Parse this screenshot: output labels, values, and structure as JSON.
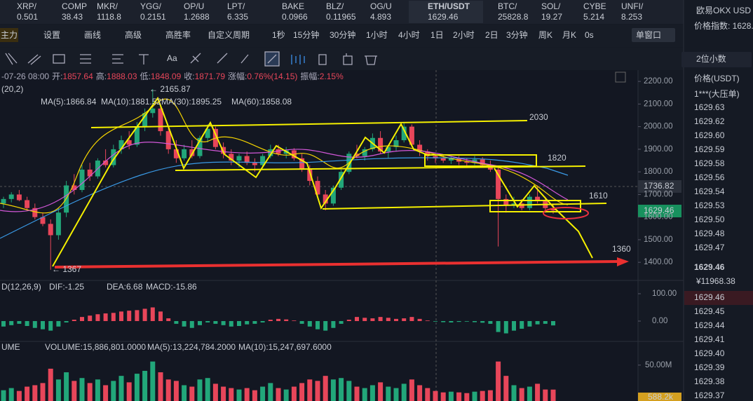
{
  "tickers": [
    {
      "name": "XRP/",
      "price": "0.501"
    },
    {
      "name": "COMP",
      "price": "38.43"
    },
    {
      "name": "MKR/",
      "price": "1118.8"
    },
    {
      "name": "YGG/",
      "price": "0.2151"
    },
    {
      "name": "OP/U",
      "price": "1.2688"
    },
    {
      "name": "LPT/",
      "price": "6.335"
    },
    {
      "name": "BAKE",
      "price": "0.0966"
    },
    {
      "name": "BLZ/",
      "price": "0.11965"
    },
    {
      "name": "OG/U",
      "price": "4.893"
    },
    {
      "name": "ETH/USDT",
      "price": "1629.46"
    },
    {
      "name": "BTC/",
      "price": "25828.8"
    },
    {
      "name": "SOL/",
      "price": "19.27"
    },
    {
      "name": "CYBE",
      "price": "5.214"
    },
    {
      "name": "UNFI/",
      "price": "8.253"
    }
  ],
  "toolbar": {
    "left": [
      "主力",
      "设置",
      "画线",
      "高级",
      "高胜率",
      "自定义周期"
    ],
    "periods": [
      "1秒",
      "15分钟",
      "30分钟",
      "1小时",
      "4小时",
      "1日",
      "2小时",
      "2日",
      "3分钟",
      "周K",
      "月K",
      "0s"
    ],
    "window": "单窗口"
  },
  "chart": {
    "info": [
      {
        "k": "-07-26 08:00",
        "v": ""
      },
      {
        "k": "开:",
        "v": "1857.64"
      },
      {
        "k": "高:",
        "v": "1888.03"
      },
      {
        "k": "低:",
        "v": "1848.09"
      },
      {
        "k": "收:",
        "v": "1871.79"
      },
      {
        "k": "涨幅:",
        "v": "0.76%(14.15)"
      },
      {
        "k": "振幅:",
        "v": "2.15%"
      }
    ],
    "boll": "(20,2)",
    "ma": [
      {
        "label": "MA(5):1866.84",
        "color": "#e8e8e8"
      },
      {
        "label": "MA(10):1881.52",
        "color": "#f5d400"
      },
      {
        "label": "MA(30):1895.25",
        "color": "#d257d8"
      },
      {
        "label": "MA(60):1858.08",
        "color": "#3a9be8"
      }
    ],
    "ylim": [
      1320,
      2250
    ],
    "yticks": [
      {
        "value": 2200,
        "label": "2200.00"
      },
      {
        "value": 2100,
        "label": "2100.00"
      },
      {
        "value": 2000,
        "label": "2000.00"
      },
      {
        "value": 1900,
        "label": "1900.00"
      },
      {
        "value": 1800,
        "label": "1800.00"
      },
      {
        "value": 1700,
        "label": "1700.00"
      },
      {
        "value": 1600,
        "label": "1600.00"
      },
      {
        "value": 1500,
        "label": "1500.00"
      },
      {
        "value": 1400,
        "label": "1400.00"
      }
    ],
    "up_color": "#22a77a",
    "down_color": "#e8465a",
    "open": [
      1660,
      1680,
      1700,
      1675,
      1640,
      1600,
      1570,
      1520,
      1620,
      1740,
      1720,
      1810,
      1780,
      1850,
      1830,
      1900,
      1940,
      1920,
      2000,
      2060,
      2080,
      1980,
      1900,
      1860,
      1900,
      1870,
      1950,
      1990,
      1910,
      1880,
      1850,
      1870,
      1840,
      1830,
      1870,
      1900,
      1880,
      1895,
      1860,
      1810,
      1760,
      1700,
      1660,
      1730,
      1800,
      1880,
      1870,
      1900,
      1950,
      1890,
      1910,
      1940,
      2000,
      1920,
      1890,
      1870,
      1860,
      1850,
      1860,
      1845,
      1840,
      1855,
      1830,
      1810,
      1680,
      1650,
      1660,
      1640,
      1690,
      1670,
      1640
    ],
    "high": [
      1690,
      1710,
      1720,
      1690,
      1660,
      1620,
      1590,
      1640,
      1760,
      1790,
      1830,
      1840,
      1860,
      1900,
      1920,
      1960,
      1980,
      2020,
      2080,
      2165.87,
      2100,
      2000,
      1940,
      1920,
      1940,
      1960,
      2010,
      2000,
      1930,
      1900,
      1880,
      1890,
      1860,
      1880,
      1920,
      1920,
      1910,
      1905,
      1880,
      1830,
      1780,
      1720,
      1740,
      1810,
      1890,
      1920,
      1910,
      1970,
      1980,
      1920,
      1960,
      2015,
      2010,
      1940,
      1900,
      1880,
      1875,
      1870,
      1870,
      1860,
      1870,
      1865,
      1850,
      1820,
      1700,
      1690,
      1680,
      1700,
      1740,
      1690,
      1660
    ],
    "low": [
      1640,
      1665,
      1670,
      1630,
      1590,
      1560,
      1367,
      1500,
      1600,
      1700,
      1710,
      1760,
      1770,
      1820,
      1820,
      1880,
      1900,
      1910,
      1980,
      2040,
      1960,
      1880,
      1840,
      1850,
      1860,
      1860,
      1930,
      1900,
      1860,
      1830,
      1820,
      1830,
      1800,
      1820,
      1860,
      1870,
      1860,
      1850,
      1800,
      1740,
      1690,
      1630,
      1650,
      1720,
      1790,
      1860,
      1850,
      1890,
      1880,
      1860,
      1890,
      1930,
      1910,
      1870,
      1850,
      1840,
      1840,
      1835,
      1830,
      1825,
      1830,
      1820,
      1800,
      1470,
      1620,
      1640,
      1630,
      1630,
      1660,
      1620,
      1615
    ],
    "close": [
      1680,
      1700,
      1675,
      1640,
      1600,
      1570,
      1520,
      1620,
      1740,
      1720,
      1810,
      1780,
      1850,
      1830,
      1900,
      1940,
      1920,
      2000,
      2060,
      2080,
      1980,
      1900,
      1860,
      1900,
      1870,
      1950,
      1990,
      1910,
      1880,
      1850,
      1870,
      1840,
      1830,
      1870,
      1900,
      1880,
      1895,
      1860,
      1810,
      1760,
      1700,
      1660,
      1730,
      1800,
      1880,
      1870,
      1900,
      1950,
      1890,
      1910,
      1940,
      2000,
      1920,
      1890,
      1870,
      1860,
      1850,
      1860,
      1845,
      1840,
      1855,
      1830,
      1810,
      1680,
      1650,
      1660,
      1640,
      1690,
      1670,
      1640,
      1629.46
    ],
    "high_label": "← 2165.87",
    "low_label": "← 1367",
    "annotations": [
      "2030",
      "1820",
      "1610",
      "1360"
    ],
    "cross_price": "1736.82",
    "last_price": "1629.46"
  },
  "macd": {
    "name": "D(12,26,9)",
    "dif": "DIF:-1.25",
    "dea": "DEA:6.68",
    "macd": "MACD:-15.86",
    "ylim": [
      -74.4,
      148.7
    ],
    "yticks": [
      {
        "value": 100,
        "label": "100.00"
      },
      {
        "value": 0,
        "label": "0.00"
      }
    ],
    "hist": [
      -20,
      -15,
      -10,
      -18,
      -25,
      -30,
      -35,
      -20,
      -5,
      5,
      15,
      20,
      25,
      28,
      30,
      35,
      38,
      40,
      45,
      50,
      35,
      10,
      -10,
      -20,
      -25,
      -15,
      -5,
      -10,
      -15,
      -20,
      -18,
      -12,
      -10,
      -5,
      5,
      8,
      6,
      2,
      -10,
      -20,
      -30,
      -35,
      -25,
      -10,
      5,
      15,
      12,
      10,
      15,
      12,
      8,
      10,
      15,
      8,
      2,
      -2,
      -4,
      -5,
      -3,
      -2,
      -4,
      -6,
      -10,
      -40,
      -45,
      -35,
      -28,
      -20,
      -12,
      -10,
      -15.86
    ]
  },
  "volume": {
    "name": "UME",
    "vol": "VOLUME:15,886,801.0000",
    "ma5": "MA(5):13,224,784.2000",
    "ma10": "MA(10):15,247,697.6000",
    "ylim": [
      0,
      83
    ],
    "yticks": [
      {
        "value": 50,
        "label": "50.00M"
      }
    ],
    "tag": "588.2k",
    "values": [
      15,
      18,
      14,
      20,
      22,
      25,
      45,
      30,
      40,
      28,
      32,
      25,
      30,
      22,
      28,
      35,
      26,
      38,
      42,
      55,
      40,
      30,
      28,
      22,
      20,
      30,
      32,
      24,
      20,
      18,
      16,
      18,
      15,
      20,
      25,
      18,
      16,
      20,
      25,
      30,
      28,
      35,
      30,
      32,
      28,
      20,
      18,
      22,
      26,
      20,
      18,
      24,
      30,
      22,
      18,
      14,
      12,
      13,
      12,
      11,
      13,
      14,
      15,
      55,
      35,
      22,
      18,
      20,
      24,
      16,
      15.886801
    ]
  },
  "orderbook": {
    "title": "欧易OKX USD",
    "index": "价格指数: 1628.",
    "decimals": "2位小数",
    "header": "价格(USDT)",
    "big_order": "1***(大压单)",
    "asks": [
      "1629.63",
      "1629.62",
      "1629.60",
      "1629.59",
      "1629.58",
      "1629.56",
      "1629.54",
      "1629.53",
      "1629.50",
      "1629.48",
      "1629.47"
    ],
    "last": "1629.46",
    "cny": "¥11968.38",
    "bids": [
      "1629.46",
      "1629.45",
      "1629.44",
      "1629.41",
      "1629.40",
      "1629.39",
      "1629.38",
      "1629.37"
    ]
  }
}
